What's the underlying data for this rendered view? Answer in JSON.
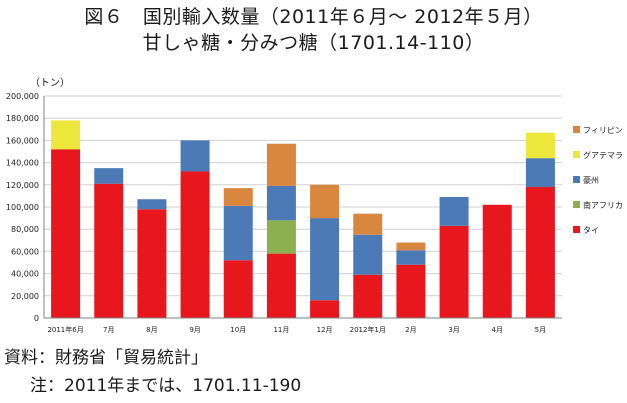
{
  "title_line1": "図６　国別輸入数量（2011年６月～ 2012年５月）",
  "title_line2": "甘しゃ糖・分みつ糖（1701.14-110）",
  "unit_label": "（トン）",
  "source_note": "資料：財務省「貿易統計」",
  "footnote": "注：2011年までは、1701.11-190",
  "chart_data": {
    "type": "bar",
    "stacked": true,
    "categories": [
      "2011年6月",
      "7月",
      "8月",
      "9月",
      "10月",
      "11月",
      "12月",
      "2012年1月",
      "2月",
      "3月",
      "4月",
      "5月"
    ],
    "ylim": [
      0,
      200000
    ],
    "yticks": [
      0,
      20000,
      40000,
      60000,
      80000,
      100000,
      120000,
      140000,
      160000,
      180000,
      200000
    ],
    "ytick_labels": [
      "0",
      "20,000",
      "40,000",
      "60,000",
      "80,000",
      "100,000",
      "120,000",
      "140,000",
      "160,000",
      "180,000",
      "200,000"
    ],
    "grid": true,
    "legend_position": "right",
    "series": [
      {
        "name": "タイ",
        "color": "#e8161d",
        "values": [
          152000,
          121000,
          98000,
          132000,
          52000,
          58000,
          16000,
          39000,
          48000,
          83000,
          102000,
          118000
        ]
      },
      {
        "name": "南アフリカ",
        "color": "#8cb050",
        "values": [
          0,
          0,
          0,
          0,
          0,
          30000,
          0,
          0,
          0,
          0,
          0,
          0
        ]
      },
      {
        "name": "豪州",
        "color": "#4b7ab6",
        "values": [
          0,
          14000,
          9000,
          28000,
          49000,
          31000,
          74000,
          36000,
          13000,
          26000,
          0,
          26000
        ]
      },
      {
        "name": "グアテマラ",
        "color": "#ede73c",
        "values": [
          26000,
          0,
          0,
          0,
          0,
          0,
          0,
          0,
          0,
          0,
          0,
          23000
        ]
      },
      {
        "name": "フィリピン",
        "color": "#d9863f",
        "values": [
          0,
          0,
          0,
          0,
          16000,
          38000,
          30000,
          19000,
          7000,
          0,
          0,
          0
        ]
      }
    ]
  }
}
